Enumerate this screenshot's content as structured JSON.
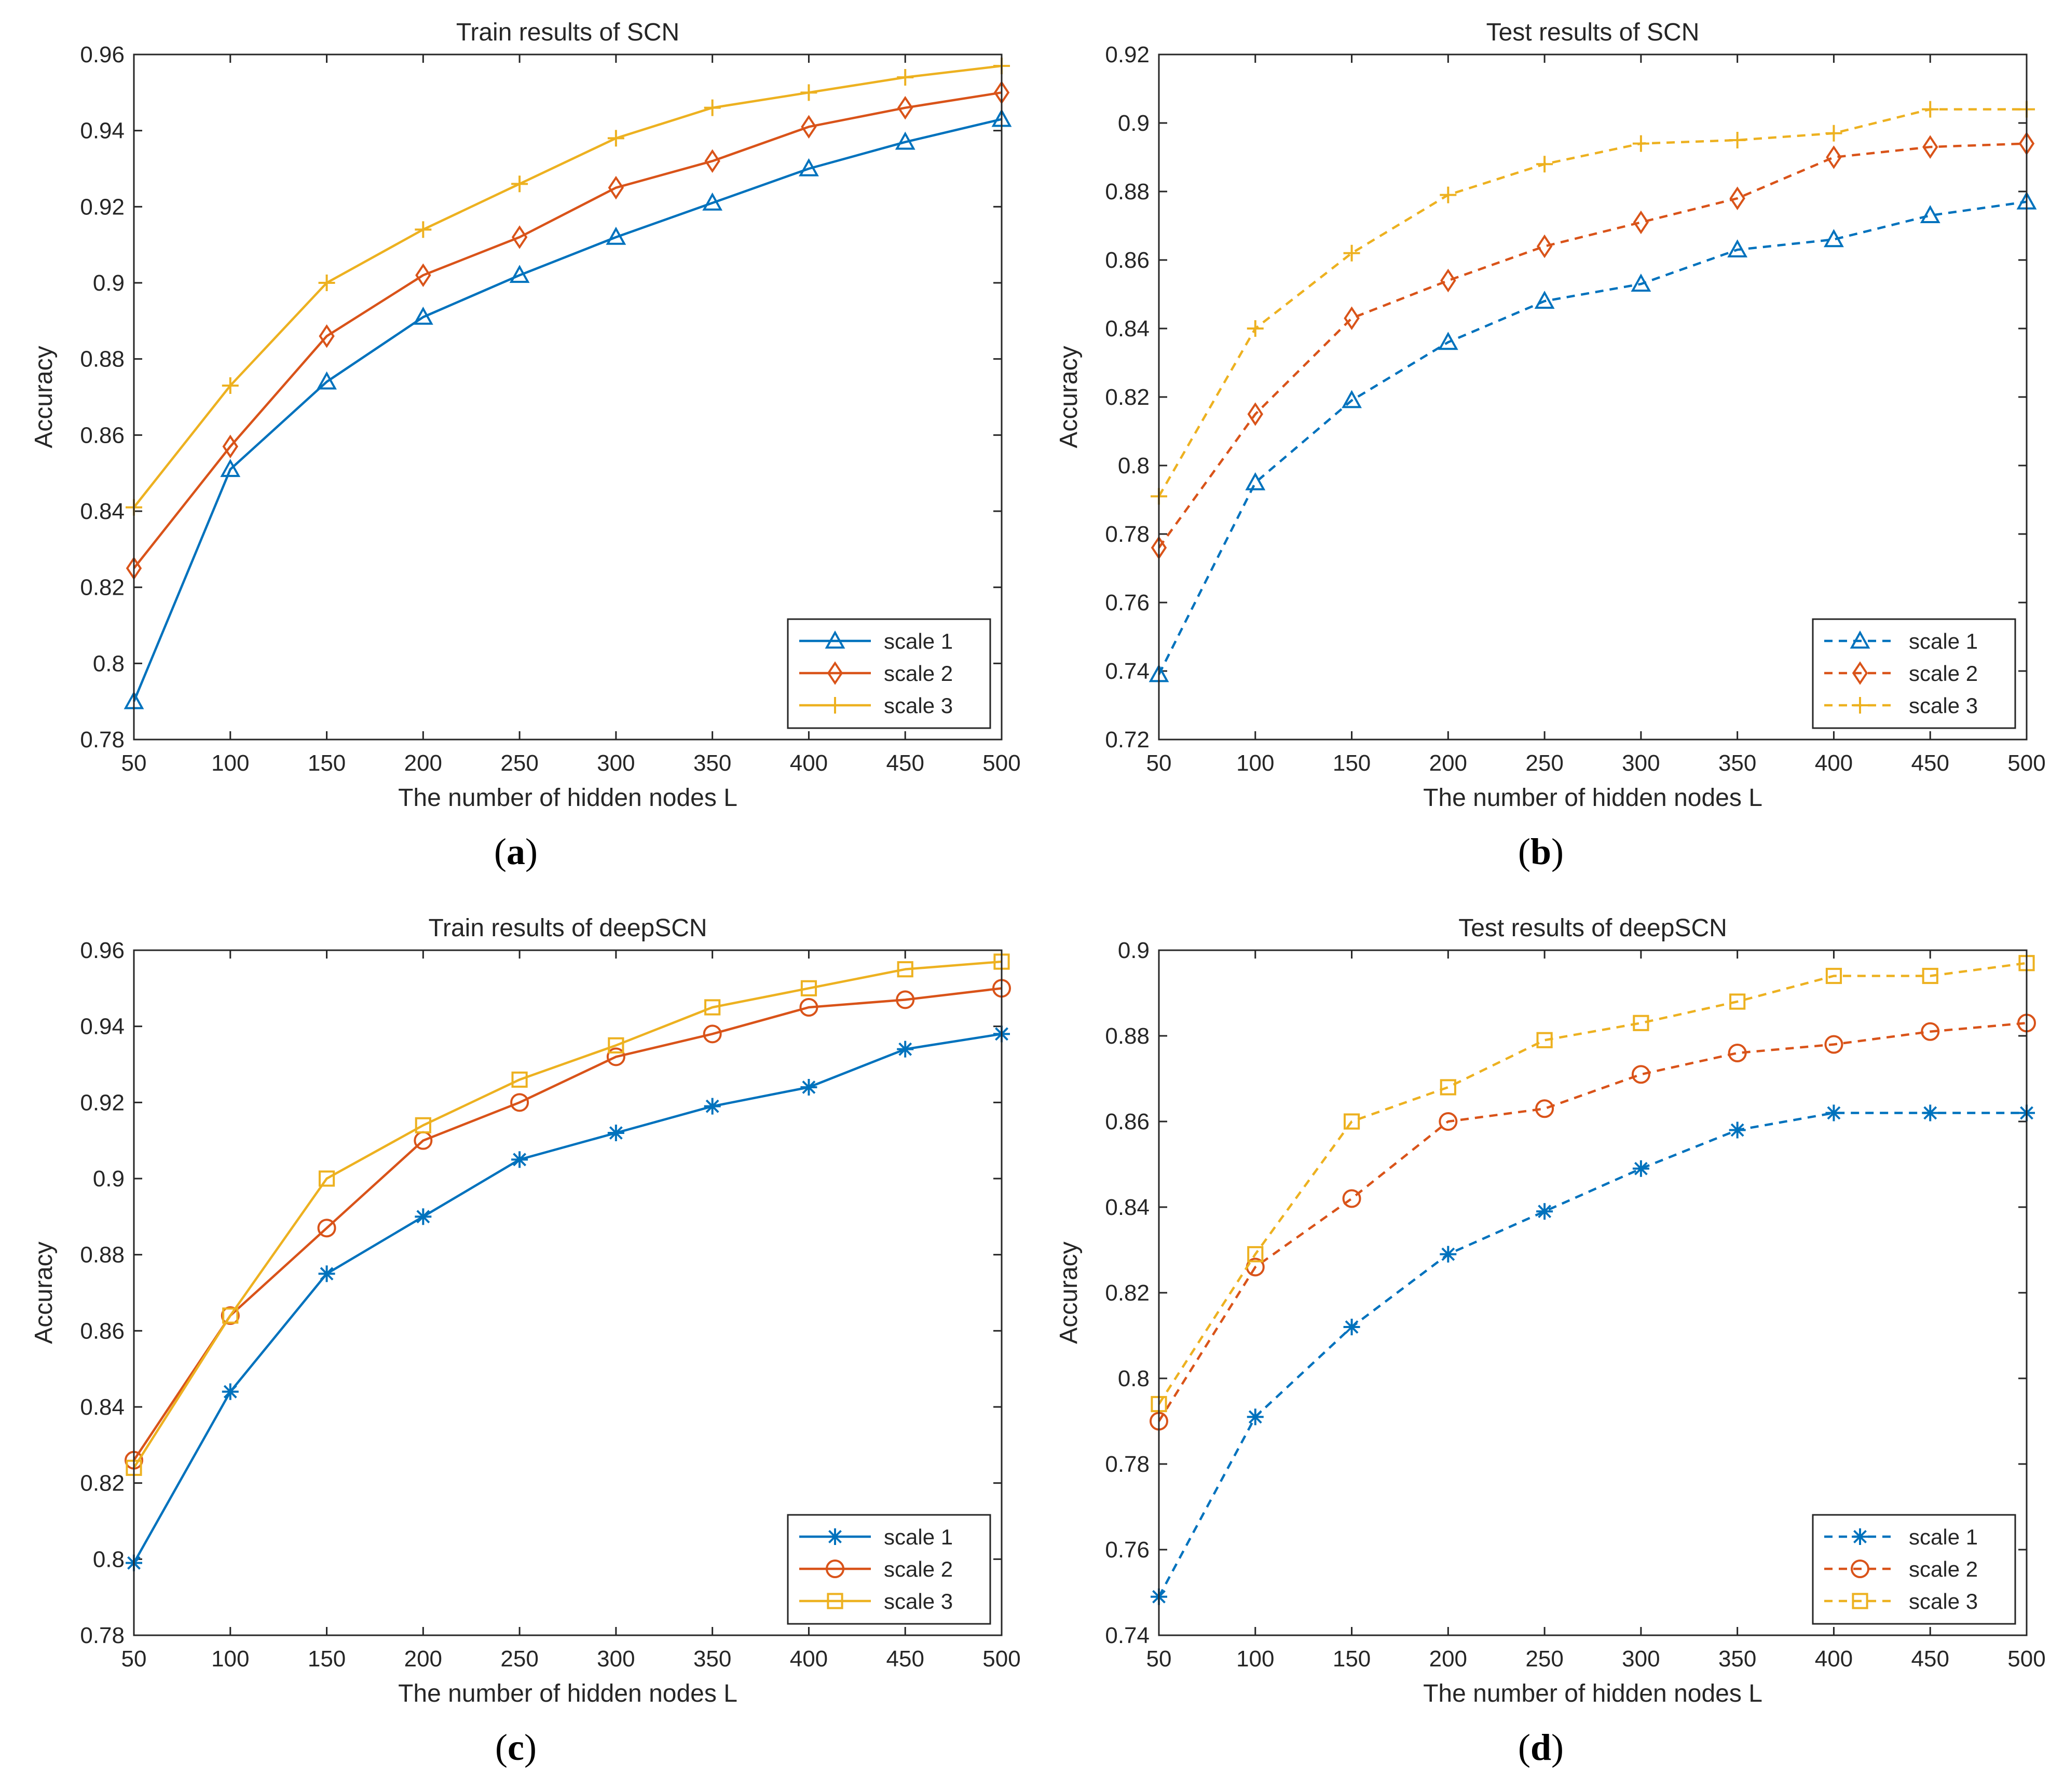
{
  "chart_data": [
    {
      "type": "line",
      "panel_label": "a",
      "title": "Train results of SCN",
      "xlabel": "The number of hidden nodes L",
      "ylabel": "Accuracy",
      "xlim": [
        50,
        500
      ],
      "ylim": [
        0.78,
        0.96
      ],
      "xticks": [
        50,
        100,
        150,
        200,
        250,
        300,
        350,
        400,
        450,
        500
      ],
      "yticks": [
        0.78,
        0.8,
        0.82,
        0.84,
        0.86,
        0.88,
        0.9,
        0.92,
        0.94,
        0.96
      ],
      "ytick_labels": [
        "0.78",
        "0.8",
        "0.82",
        "0.84",
        "0.86",
        "0.88",
        "0.9",
        "0.92",
        "0.94",
        "0.96"
      ],
      "line_style": "solid",
      "legend_position": "bottom-right",
      "x": [
        50,
        100,
        150,
        200,
        250,
        300,
        350,
        400,
        450,
        500
      ],
      "series": [
        {
          "name": "scale 1",
          "color": "#0072BD",
          "marker": "triangle",
          "values": [
            0.79,
            0.851,
            0.874,
            0.891,
            0.902,
            0.912,
            0.921,
            0.93,
            0.937,
            0.943
          ]
        },
        {
          "name": "scale 2",
          "color": "#D95319",
          "marker": "diamond",
          "values": [
            0.825,
            0.857,
            0.886,
            0.902,
            0.912,
            0.925,
            0.932,
            0.941,
            0.946,
            0.95
          ]
        },
        {
          "name": "scale 3",
          "color": "#EDB120",
          "marker": "plus",
          "values": [
            0.841,
            0.873,
            0.9,
            0.914,
            0.926,
            0.938,
            0.946,
            0.95,
            0.954,
            0.957
          ]
        }
      ]
    },
    {
      "type": "line",
      "panel_label": "b",
      "title": "Test results of SCN",
      "xlabel": "The number of hidden nodes L",
      "ylabel": "Accuracy",
      "xlim": [
        50,
        500
      ],
      "ylim": [
        0.72,
        0.92
      ],
      "xticks": [
        50,
        100,
        150,
        200,
        250,
        300,
        350,
        400,
        450,
        500
      ],
      "yticks": [
        0.72,
        0.74,
        0.76,
        0.78,
        0.8,
        0.82,
        0.84,
        0.86,
        0.88,
        0.9,
        0.92
      ],
      "ytick_labels": [
        "0.72",
        "0.74",
        "0.76",
        "0.78",
        "0.8",
        "0.82",
        "0.84",
        "0.86",
        "0.88",
        "0.9",
        "0.92"
      ],
      "line_style": "dashed",
      "legend_position": "bottom-right",
      "x": [
        50,
        100,
        150,
        200,
        250,
        300,
        350,
        400,
        450,
        500
      ],
      "series": [
        {
          "name": "scale 1",
          "color": "#0072BD",
          "marker": "triangle",
          "values": [
            0.739,
            0.795,
            0.819,
            0.836,
            0.848,
            0.853,
            0.863,
            0.866,
            0.873,
            0.877
          ]
        },
        {
          "name": "scale 2",
          "color": "#D95319",
          "marker": "diamond",
          "values": [
            0.776,
            0.815,
            0.843,
            0.854,
            0.864,
            0.871,
            0.878,
            0.89,
            0.893,
            0.894
          ]
        },
        {
          "name": "scale 3",
          "color": "#EDB120",
          "marker": "plus",
          "values": [
            0.791,
            0.84,
            0.862,
            0.879,
            0.888,
            0.894,
            0.895,
            0.897,
            0.904,
            0.904
          ]
        }
      ]
    },
    {
      "type": "line",
      "panel_label": "c",
      "title": "Train results of deepSCN",
      "xlabel": "The number of hidden nodes L",
      "ylabel": "Accuracy",
      "xlim": [
        50,
        500
      ],
      "ylim": [
        0.78,
        0.96
      ],
      "xticks": [
        50,
        100,
        150,
        200,
        250,
        300,
        350,
        400,
        450,
        500
      ],
      "yticks": [
        0.78,
        0.8,
        0.82,
        0.84,
        0.86,
        0.88,
        0.9,
        0.92,
        0.94,
        0.96
      ],
      "ytick_labels": [
        "0.78",
        "0.8",
        "0.82",
        "0.84",
        "0.86",
        "0.88",
        "0.9",
        "0.92",
        "0.94",
        "0.96"
      ],
      "line_style": "solid",
      "legend_position": "bottom-right",
      "x": [
        50,
        100,
        150,
        200,
        250,
        300,
        350,
        400,
        450,
        500
      ],
      "series": [
        {
          "name": "scale 1",
          "color": "#0072BD",
          "marker": "asterisk",
          "values": [
            0.799,
            0.844,
            0.875,
            0.89,
            0.905,
            0.912,
            0.919,
            0.924,
            0.934,
            0.938
          ]
        },
        {
          "name": "scale 2",
          "color": "#D95319",
          "marker": "circle",
          "values": [
            0.826,
            0.864,
            0.887,
            0.91,
            0.92,
            0.932,
            0.938,
            0.945,
            0.947,
            0.95
          ]
        },
        {
          "name": "scale 3",
          "color": "#EDB120",
          "marker": "square",
          "values": [
            0.824,
            0.864,
            0.9,
            0.914,
            0.926,
            0.935,
            0.945,
            0.95,
            0.955,
            0.957
          ]
        }
      ]
    },
    {
      "type": "line",
      "panel_label": "d",
      "title": "Test results of deepSCN",
      "xlabel": "The number of hidden nodes L",
      "ylabel": "Accuracy",
      "xlim": [
        50,
        500
      ],
      "ylim": [
        0.74,
        0.9
      ],
      "xticks": [
        50,
        100,
        150,
        200,
        250,
        300,
        350,
        400,
        450,
        500
      ],
      "yticks": [
        0.74,
        0.76,
        0.78,
        0.8,
        0.82,
        0.84,
        0.86,
        0.88,
        0.9
      ],
      "ytick_labels": [
        "0.74",
        "0.76",
        "0.78",
        "0.8",
        "0.82",
        "0.84",
        "0.86",
        "0.88",
        "0.9"
      ],
      "line_style": "dashed",
      "legend_position": "bottom-right",
      "x": [
        50,
        100,
        150,
        200,
        250,
        300,
        350,
        400,
        450,
        500
      ],
      "series": [
        {
          "name": "scale 1",
          "color": "#0072BD",
          "marker": "asterisk",
          "values": [
            0.749,
            0.791,
            0.812,
            0.829,
            0.839,
            0.849,
            0.858,
            0.862,
            0.862,
            0.862
          ]
        },
        {
          "name": "scale 2",
          "color": "#D95319",
          "marker": "circle",
          "values": [
            0.79,
            0.826,
            0.842,
            0.86,
            0.863,
            0.871,
            0.876,
            0.878,
            0.881,
            0.883
          ]
        },
        {
          "name": "scale 3",
          "color": "#EDB120",
          "marker": "square",
          "values": [
            0.794,
            0.829,
            0.86,
            0.868,
            0.879,
            0.883,
            0.888,
            0.894,
            0.894,
            0.897
          ]
        }
      ]
    }
  ]
}
